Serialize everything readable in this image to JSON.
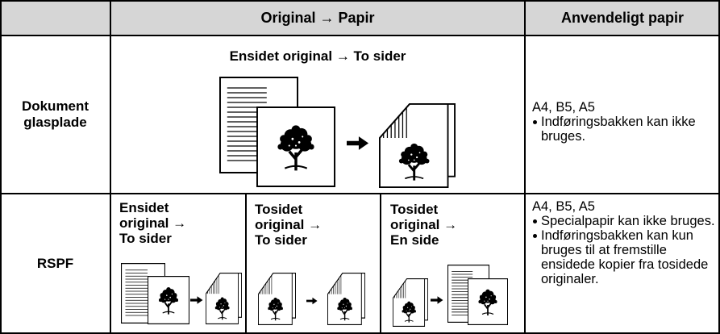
{
  "table": {
    "columns": [
      "Original → Papir",
      "Anvendeligt papir"
    ],
    "rows": [
      {
        "label": [
          "Dokument",
          "glasplade"
        ],
        "heading": "Ensidet original → To sider",
        "paper": "A4, B5, A5",
        "notes": [
          "Indføringsbakken kan ikke bruges."
        ]
      },
      {
        "label": [
          "RSPF"
        ],
        "modes": [
          [
            "Ensidet",
            "original →",
            "To sider"
          ],
          [
            "Tosidet",
            "original →",
            "To sider"
          ],
          [
            "Tosidet",
            "original →",
            "En side"
          ]
        ],
        "paper": "A4, B5, A5",
        "notes": [
          "Specialpapir kan ikke bruges.",
          "Indføringsbakken kan kun bruges til at fremstille ensidede kopier fra tosidede originaler."
        ]
      }
    ]
  }
}
